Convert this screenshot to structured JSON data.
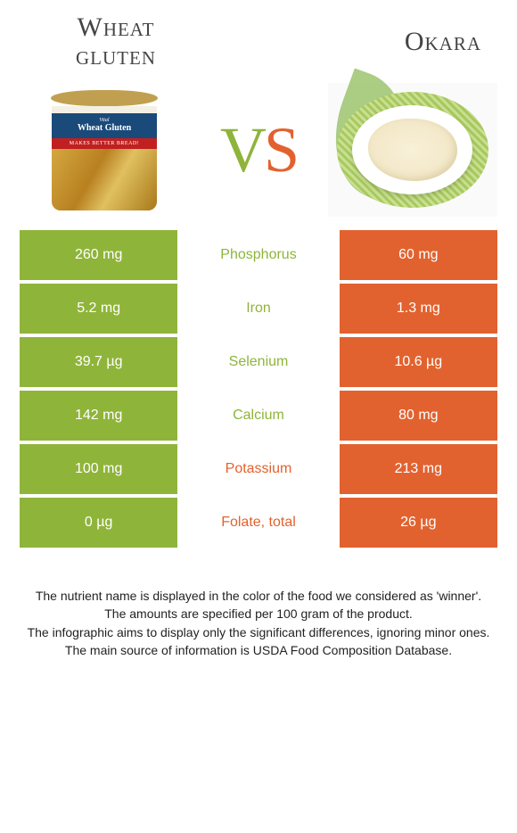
{
  "colors": {
    "left": "#8fb43a",
    "right": "#e2622f",
    "background": "#ffffff",
    "text_dark": "#333333"
  },
  "header": {
    "left_title_line1": "Wheat",
    "left_title_line2": "gluten",
    "right_title": "Okara",
    "vs_v": "V",
    "vs_s": "S",
    "jar_small": "Vital",
    "jar_big": "Wheat Gluten",
    "jar_red": "MAKES BETTER BREAD!"
  },
  "rows": [
    {
      "left": "260 mg",
      "name": "Phosphorus",
      "right": "60 mg",
      "winner": "left"
    },
    {
      "left": "5.2 mg",
      "name": "Iron",
      "right": "1.3 mg",
      "winner": "left"
    },
    {
      "left": "39.7 µg",
      "name": "Selenium",
      "right": "10.6 µg",
      "winner": "left"
    },
    {
      "left": "142 mg",
      "name": "Calcium",
      "right": "80 mg",
      "winner": "left"
    },
    {
      "left": "100 mg",
      "name": "Potassium",
      "right": "213 mg",
      "winner": "right"
    },
    {
      "left": "0 µg",
      "name": "Folate, total",
      "right": "26 µg",
      "winner": "right"
    }
  ],
  "footer": {
    "line1": "The nutrient name is displayed in the color of the food we considered as 'winner'.",
    "line2": "The amounts are specified per 100 gram of the product.",
    "line3": "The infographic aims to display only the significant differences, ignoring minor ones.",
    "line4": "The main source of information is USDA Food Composition Database."
  }
}
